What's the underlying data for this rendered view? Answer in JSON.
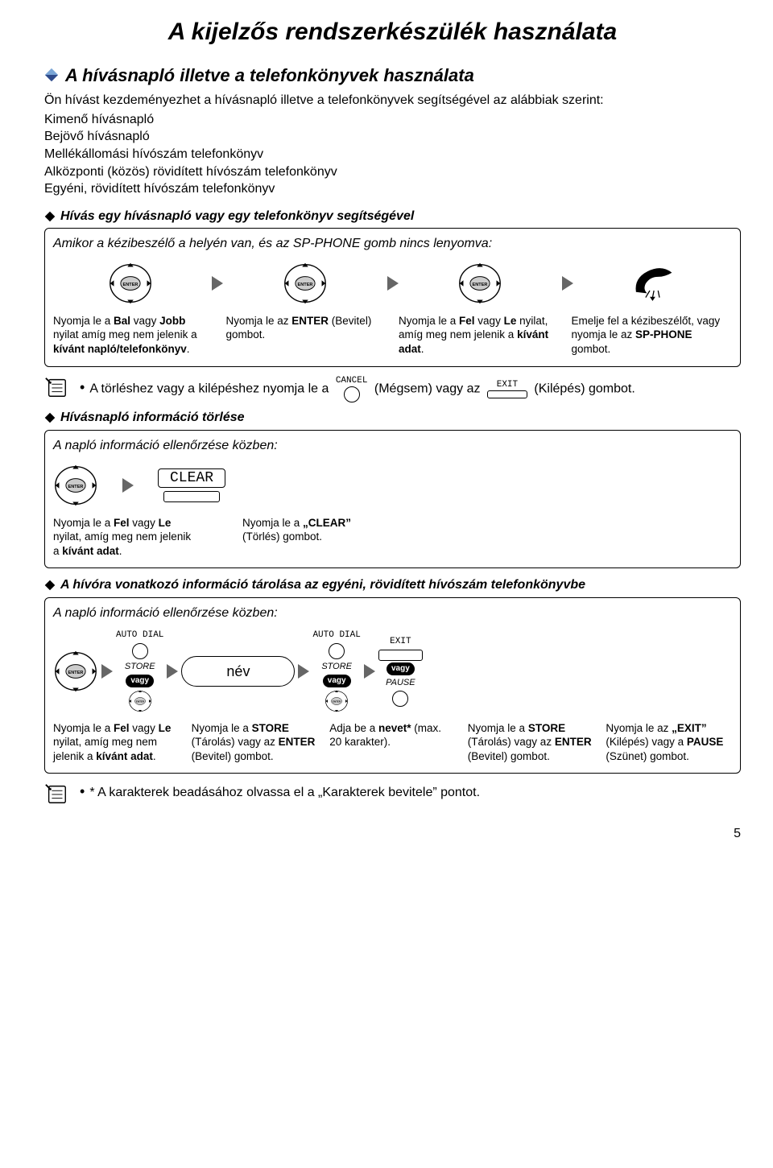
{
  "page": {
    "title": "A kijelzős rendszerkészülék használata",
    "number": "5"
  },
  "section1": {
    "title": "A hívásnapló illetve a telefonkönyvek használata",
    "intro": "Ön hívást kezdeményezhet a hívásnapló illetve a telefonkönyvek segítségével az alábbiak szerint:",
    "items": [
      "Kimenő hívásnapló",
      "Bejövő hívásnapló",
      "Mellékállomási hívószám telefonkönyv",
      "Alközponti (közös) rövidített hívószám telefonkönyv",
      "Egyéni, rövidített hívószám telefonkönyv"
    ]
  },
  "sub1": {
    "title": "Hívás egy hívásnapló vagy egy telefonkönyv segítségével",
    "box_head": "Amikor a kézibeszélő a helyén van, és az SP-PHONE gomb nincs lenyomva:",
    "captions": [
      "Nyomja le a <b>Bal</b> vagy <b>Jobb</b> nyilat amíg meg nem jelenik a <b>kívánt napló/telefonkönyv</b>.",
      "Nyomja le az <b>ENTER</b> (Bevitel) gombot.",
      "Nyomja le a <b>Fel</b> vagy <b>Le</b> nyilat, amíg meg nem jelenik a <b>kívánt adat</b>.",
      "Emelje fel a kézibeszélőt, vagy nyomja le az <b>SP-PHONE</b> gombot."
    ]
  },
  "note1": {
    "pre": "A törléshez vagy a kilépéshez nyomja le a",
    "mid": "(Mégsem) vagy az",
    "post": "(Kilépés) gombot.",
    "cancel_label": "CANCEL",
    "exit_label": "EXIT"
  },
  "sub2": {
    "title": "Hívásnapló információ törlése",
    "box_head": "A napló információ ellenőrzése közben:",
    "clear_label": "CLEAR",
    "captions": [
      "Nyomja le a <b>Fel</b> vagy <b>Le</b> nyilat, amíg meg nem jelenik a <b>kívánt adat</b>.",
      "Nyomja le a <b>„CLEAR”</b> (Törlés) gombot."
    ]
  },
  "sub3": {
    "title": "A hívóra vonatkozó információ tárolása az egyéni, rövidített hívószám telefonkönyvbe",
    "box_head": "A napló információ ellenőrzése közben:",
    "labels": {
      "autodial": "AUTO DIAL",
      "store": "STORE",
      "exit": "EXIT",
      "pause": "PAUSE",
      "vagy": "vagy",
      "name": "név"
    },
    "captions": [
      "Nyomja le a <b>Fel</b> vagy <b>Le</b> nyilat, amíg meg nem jelenik a <b>kívánt adat</b>.",
      "Nyomja le a <b>STORE</b> (Tárolás) vagy az <b>ENTER</b> (Bevitel) gombot.",
      "Adja be a <b>nevet*</b> (max. 20 karakter).",
      "Nyomja le a <b>STORE</b> (Tárolás) vagy az <b>ENTER</b> (Bevitel) gombot.",
      "Nyomja le az <b>„EXIT”</b> (Kilépés) vagy a <b>PAUSE</b> (Szünet) gombot."
    ]
  },
  "note2": {
    "text": "* A karakterek beadásához olvassa el a „Karakterek bevitele” pontot."
  },
  "colors": {
    "text": "#000000",
    "bg": "#ffffff",
    "triangle": "#666666",
    "diamond_tl": "#7aa5d6",
    "diamond_br": "#2f4a8a"
  }
}
